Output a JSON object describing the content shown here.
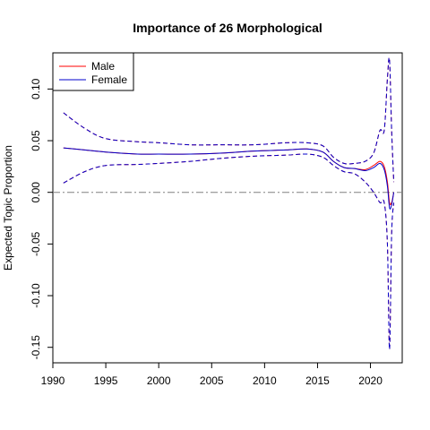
{
  "chart_data": {
    "type": "line",
    "title": "Importance of 26 Morphological",
    "xlabel": "",
    "ylabel": "Expected Topic Proportion",
    "xlim": [
      1990,
      2023
    ],
    "ylim": [
      -0.165,
      0.135
    ],
    "x_ticks": [
      "1990",
      "1995",
      "2000",
      "2005",
      "2010",
      "2015",
      "2020"
    ],
    "y_ticks": [
      "-0.15",
      "-0.10",
      "-0.05",
      "0.00",
      "0.05",
      "0.10"
    ],
    "x_tick_values": [
      1990,
      1995,
      2000,
      2005,
      2010,
      2015,
      2020
    ],
    "y_tick_values": [
      -0.15,
      -0.1,
      -0.05,
      0.0,
      0.05,
      0.1
    ],
    "reference_line": 0,
    "legend_position": "top-left",
    "legend": [
      {
        "label": "Male",
        "color": "#ff0000"
      },
      {
        "label": "Female",
        "color": "#0000cc"
      }
    ],
    "series": [
      {
        "name": "Male",
        "color": "#ff0000",
        "x": [
          1991,
          1993,
          1995,
          1998,
          2000,
          2003,
          2006,
          2009,
          2012,
          2014,
          2015.5,
          2016.5,
          2017.5,
          2018.5,
          2019.5,
          2020.3,
          2020.9,
          2021.3,
          2021.6,
          2021.8,
          2022.0,
          2022.2
        ],
        "mean": [
          0.043,
          0.041,
          0.039,
          0.037,
          0.037,
          0.037,
          0.038,
          0.04,
          0.041,
          0.042,
          0.039,
          0.03,
          0.024,
          0.023,
          0.022,
          0.026,
          0.03,
          0.025,
          0.01,
          -0.01,
          -0.01,
          0.0
        ],
        "upper": [
          0.077,
          0.062,
          0.052,
          0.049,
          0.048,
          0.046,
          0.046,
          0.046,
          0.048,
          0.048,
          0.045,
          0.034,
          0.028,
          0.028,
          0.03,
          0.038,
          0.06,
          0.06,
          0.11,
          0.128,
          0.06,
          0.01
        ],
        "lower": [
          0.009,
          0.02,
          0.026,
          0.027,
          0.028,
          0.03,
          0.033,
          0.035,
          0.036,
          0.037,
          0.034,
          0.026,
          0.02,
          0.018,
          0.01,
          0.0,
          -0.01,
          -0.01,
          -0.05,
          -0.152,
          -0.04,
          -0.01
        ]
      },
      {
        "name": "Female",
        "color": "#0000cc",
        "x": [
          1991,
          1993,
          1995,
          1998,
          2000,
          2003,
          2006,
          2009,
          2012,
          2014,
          2015.5,
          2016.5,
          2017.5,
          2018.5,
          2019.5,
          2020.3,
          2020.9,
          2021.3,
          2021.6,
          2021.8,
          2022.0,
          2022.2
        ],
        "mean": [
          0.043,
          0.041,
          0.039,
          0.037,
          0.037,
          0.037,
          0.038,
          0.04,
          0.041,
          0.042,
          0.039,
          0.03,
          0.024,
          0.023,
          0.021,
          0.024,
          0.028,
          0.022,
          0.006,
          -0.015,
          -0.012,
          0.0
        ],
        "upper": [
          0.077,
          0.062,
          0.052,
          0.049,
          0.048,
          0.046,
          0.046,
          0.046,
          0.048,
          0.048,
          0.045,
          0.034,
          0.028,
          0.028,
          0.03,
          0.038,
          0.06,
          0.06,
          0.11,
          0.128,
          0.06,
          0.01
        ],
        "lower": [
          0.009,
          0.02,
          0.026,
          0.027,
          0.028,
          0.03,
          0.033,
          0.035,
          0.036,
          0.037,
          0.034,
          0.026,
          0.02,
          0.018,
          0.01,
          0.0,
          -0.01,
          -0.01,
          -0.05,
          -0.152,
          -0.04,
          -0.01
        ]
      }
    ]
  }
}
